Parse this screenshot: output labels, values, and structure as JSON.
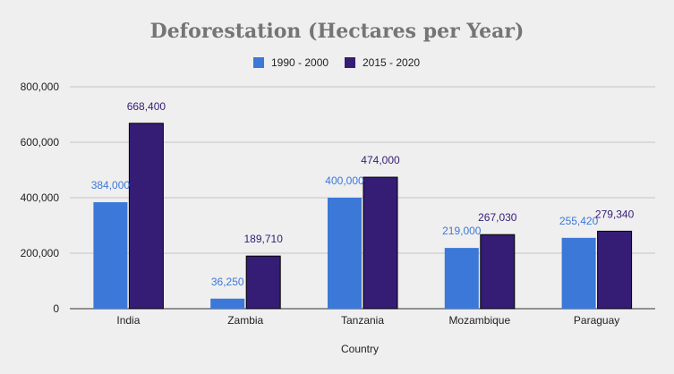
{
  "chart_data": {
    "type": "bar",
    "title": "Deforestation (Hectares per Year)",
    "xlabel": "Country",
    "ylabel": "",
    "categories": [
      "India",
      "Zambia",
      "Tanzania",
      "Mozambique",
      "Paraguay"
    ],
    "series": [
      {
        "name": "1990 - 2000",
        "color": "#3c78d8",
        "label_color": "#3c78d8",
        "values": [
          384000,
          36250,
          400000,
          219000,
          255420
        ],
        "labels": [
          "384,000",
          "36,250",
          "400,000",
          "219,000",
          "255,420"
        ]
      },
      {
        "name": "2015 - 2020",
        "color": "#351c75",
        "label_color": "#351c75",
        "values": [
          668400,
          189710,
          474000,
          267030,
          279340
        ],
        "labels": [
          "668,400",
          "189,710",
          "474,000",
          "267,030",
          "279,340"
        ]
      }
    ],
    "ylim": [
      0,
      800000
    ],
    "yticks": [
      0,
      200000,
      400000,
      600000,
      800000
    ],
    "ytick_labels": [
      "0",
      "200,000",
      "400,000",
      "600,000",
      "800,000"
    ],
    "grid": true,
    "legend": "top-center",
    "background": "#efefef"
  }
}
